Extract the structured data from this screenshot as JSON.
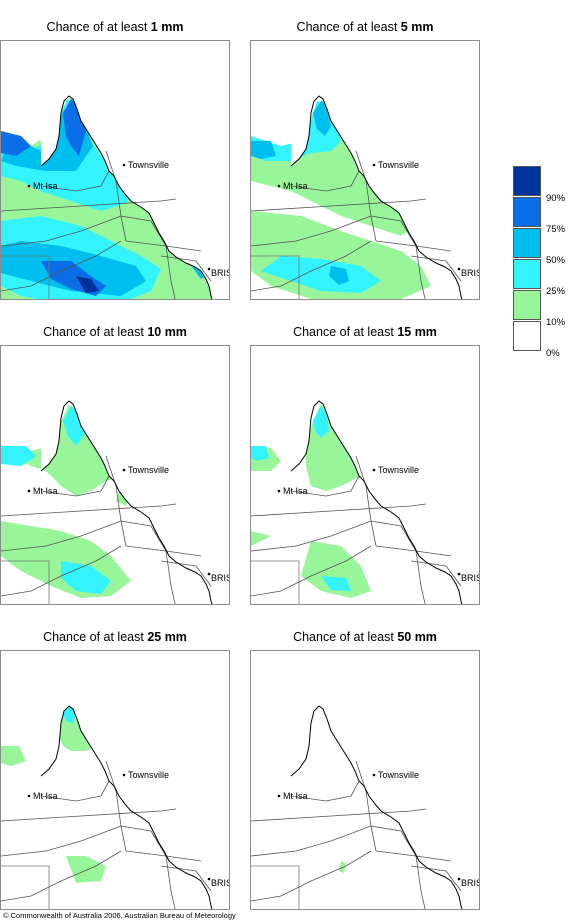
{
  "panels": [
    {
      "title_prefix": "Chance of at least ",
      "amount": "1 mm",
      "level": 0
    },
    {
      "title_prefix": "Chance of at least ",
      "amount": "5 mm",
      "level": 1
    },
    {
      "title_prefix": "Chance of at least ",
      "amount": "10 mm",
      "level": 2
    },
    {
      "title_prefix": "Chance of at least ",
      "amount": "15 mm",
      "level": 3
    },
    {
      "title_prefix": "Chance of at least ",
      "amount": "25 mm",
      "level": 4
    },
    {
      "title_prefix": "Chance of at least ",
      "amount": "50 mm",
      "level": 5
    }
  ],
  "cities": {
    "townsville": "Townsville",
    "mt_isa": "Mt Isa",
    "brisbane": "BRIS"
  },
  "legend": {
    "labels": [
      "90%",
      "75%",
      "50%",
      "25%",
      "10%",
      "0%"
    ],
    "colors": [
      "#003399",
      "#0a6ee6",
      "#00bfef",
      "#33f3ff",
      "#99f59a",
      "#ffffff"
    ]
  },
  "colors": {
    "green": "#99f59a",
    "cyan": "#33f3ff",
    "light_blue": "#00bfef",
    "blue": "#0a6ee6",
    "dark_blue": "#003399",
    "coast": "#000000",
    "border": "#8c8c8c"
  },
  "copyright": "© Commonwealth of Australia 2006, Australian Bureau of Meteorology"
}
